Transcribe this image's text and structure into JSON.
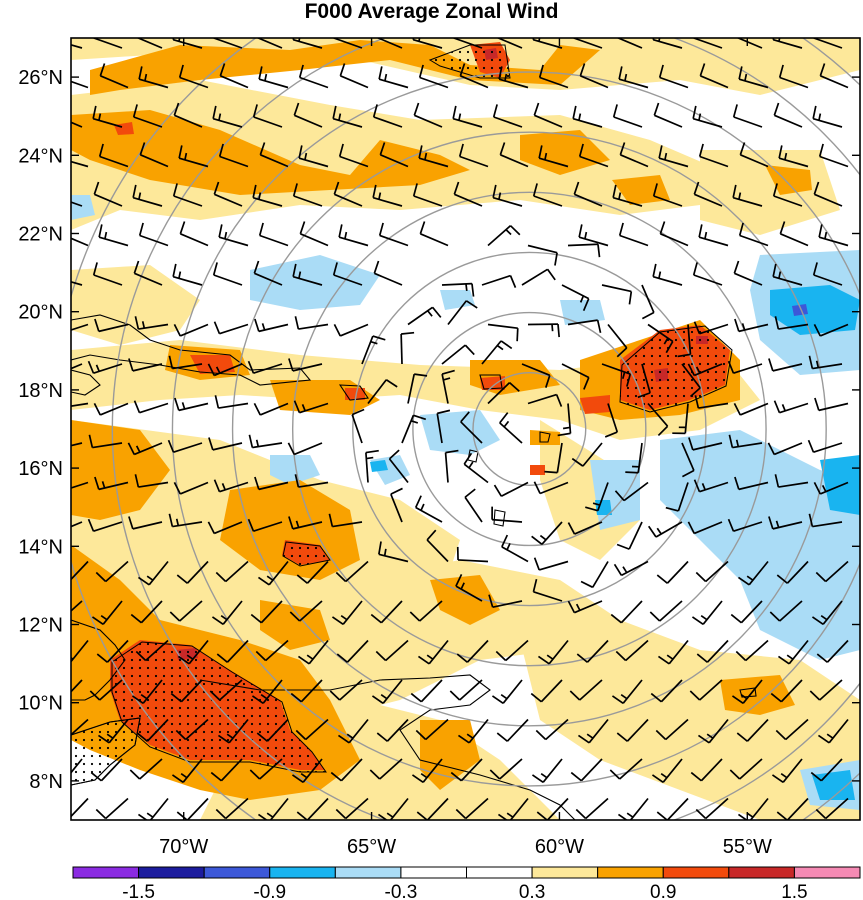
{
  "title": "F000 Average Zonal Wind",
  "map": {
    "type": "filled-contour-wind-barb-map",
    "lat_range": [
      7,
      27
    ],
    "lon_range": [
      -73,
      -52
    ],
    "lat_ticks": [
      {
        "value": 26,
        "label": "26°N"
      },
      {
        "value": 24,
        "label": "24°N"
      },
      {
        "value": 22,
        "label": "22°N"
      },
      {
        "value": 20,
        "label": "20°N"
      },
      {
        "value": 18,
        "label": "18°N"
      },
      {
        "value": 16,
        "label": "16°N"
      },
      {
        "value": 14,
        "label": "14°N"
      },
      {
        "value": 12,
        "label": "12°N"
      },
      {
        "value": 10,
        "label": "10°N"
      },
      {
        "value": 8,
        "label": "8°N"
      }
    ],
    "lon_ticks": [
      {
        "value": -70,
        "label": "70°W"
      },
      {
        "value": -65,
        "label": "65°W"
      },
      {
        "value": -60,
        "label": "60°W"
      },
      {
        "value": -55,
        "label": "55°W"
      }
    ],
    "range_ring_center": {
      "lon": -60.8,
      "lat": 17.0
    },
    "range_ring_radii_deg": [
      1.5,
      3.1,
      4.7,
      6.3,
      7.9,
      9.5,
      11.1,
      12.7
    ]
  },
  "colorbar": {
    "colors": [
      "#8b2be2",
      "#1c1c9e",
      "#3c58d8",
      "#19b4f0",
      "#aadcf6",
      "#ffffff",
      "#ffffff",
      "#fde89a",
      "#f9a200",
      "#f24a0c",
      "#c82828",
      "#f58ab4"
    ],
    "labels": [
      {
        "value": -1.5,
        "text": "-1.5"
      },
      {
        "value": -0.9,
        "text": "-0.9"
      },
      {
        "value": -0.3,
        "text": "-0.3"
      },
      {
        "value": 0.3,
        "text": "0.3"
      },
      {
        "value": 0.9,
        "text": "0.9"
      },
      {
        "value": 1.5,
        "text": "1.5"
      }
    ]
  },
  "colors": {
    "ring": "#9a9a9a",
    "barb": "#000000",
    "coast": "#000000"
  }
}
